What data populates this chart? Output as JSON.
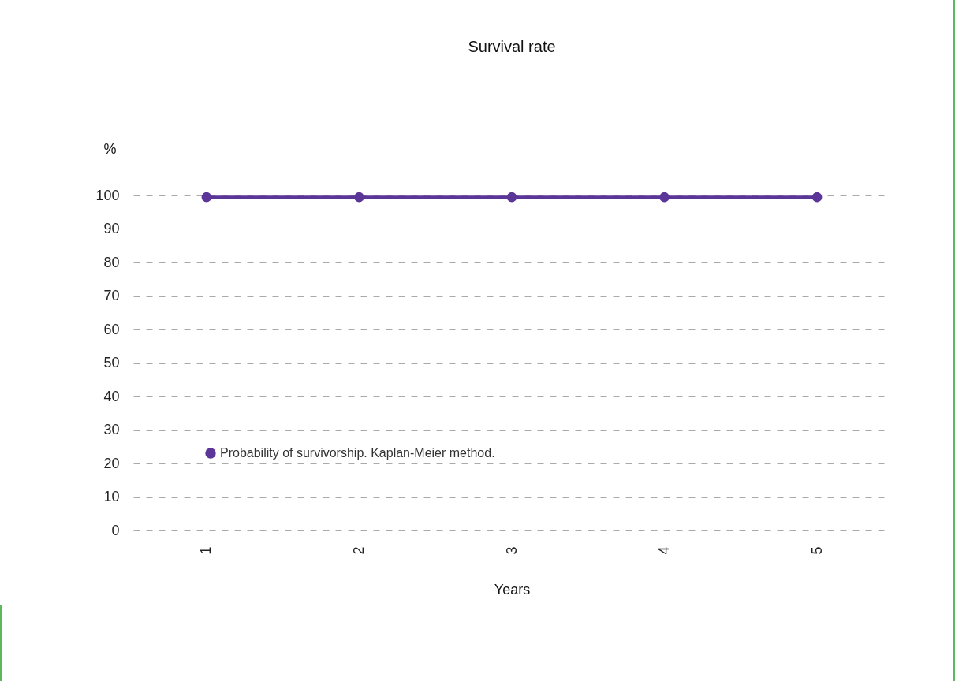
{
  "chart_data": {
    "type": "line",
    "title": "Survival rate",
    "xlabel": "Years",
    "ylabel": "%",
    "categories": [
      "1",
      "2",
      "3",
      "4",
      "5"
    ],
    "series": [
      {
        "name": "Probability of survivorship. Kaplan-Meier method.",
        "color": "#5b3597",
        "values": [
          99.5,
          99.5,
          99.5,
          99.5,
          99.5
        ]
      }
    ],
    "ylim": [
      0,
      100
    ],
    "yticks": [
      0,
      10,
      20,
      30,
      40,
      50,
      60,
      70,
      80,
      90,
      100
    ],
    "grid": "y",
    "legend": "bottom left",
    "marker": "circle",
    "line_style": "solid"
  }
}
